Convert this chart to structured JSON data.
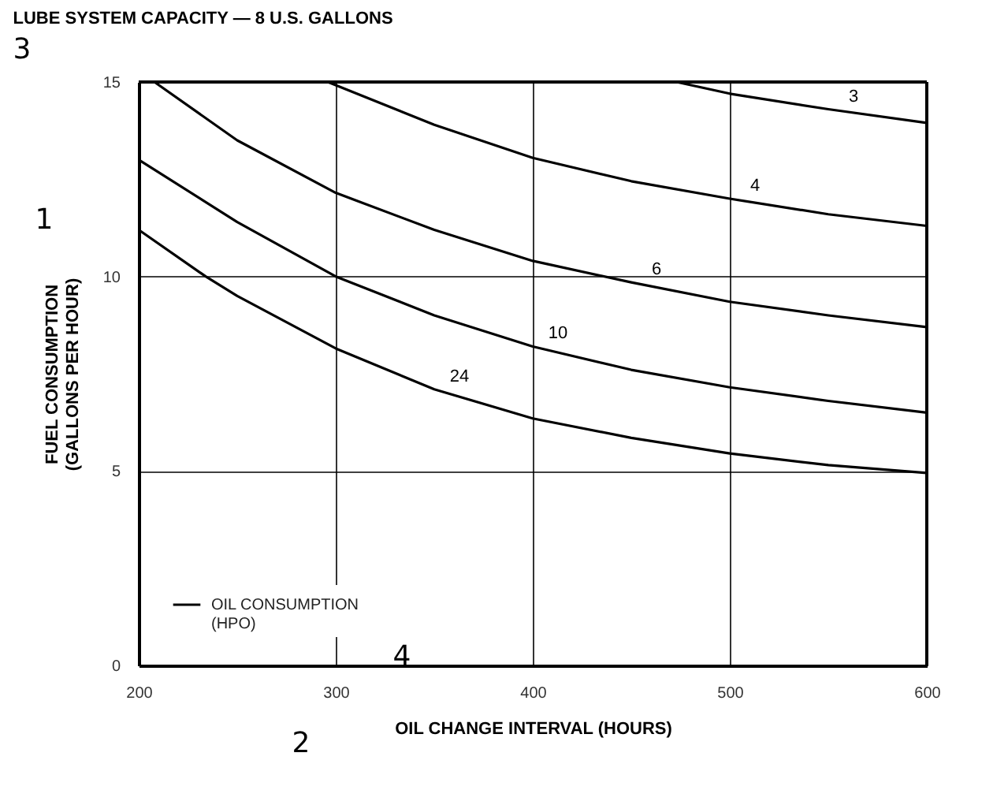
{
  "chart_data": {
    "type": "line",
    "title": "LUBE SYSTEM CAPACITY — 8 U.S. GALLONS",
    "xlabel": "OIL CHANGE INTERVAL (HOURS)",
    "ylabel": "FUEL CONSUMPTION\n(GALLONS PER HOUR)",
    "legend_title": "OIL CONSUMPTION\n(HPO)",
    "xlim": [
      200,
      600
    ],
    "xticks": [
      200,
      300,
      400,
      500,
      600
    ],
    "ylim": [
      0,
      15
    ],
    "yticks": [
      0,
      5,
      10,
      15
    ],
    "grid": true,
    "marker": "none",
    "line_style": "solid",
    "annotations": [
      "1",
      "2",
      "3",
      "4"
    ],
    "series": [
      {
        "name": "3",
        "color": "#000000",
        "x": [
          473,
          500,
          550,
          600
        ],
        "values": [
          15,
          14.7,
          14.3,
          13.95
        ]
      },
      {
        "name": "4",
        "color": "#000000",
        "x": [
          296,
          350,
          400,
          450,
          500,
          550,
          600
        ],
        "values": [
          15,
          13.9,
          13.05,
          12.45,
          12.0,
          11.6,
          11.3
        ]
      },
      {
        "name": "6",
        "color": "#000000",
        "x": [
          208,
          250,
          300,
          350,
          400,
          450,
          500,
          550,
          600
        ],
        "values": [
          15,
          13.5,
          12.15,
          11.2,
          10.4,
          9.85,
          9.35,
          9.0,
          8.7
        ]
      },
      {
        "name": "10",
        "color": "#000000",
        "x": [
          200,
          250,
          300,
          350,
          400,
          450,
          500,
          550,
          600
        ],
        "values": [
          13.0,
          11.4,
          10.0,
          9.0,
          8.2,
          7.6,
          7.15,
          6.8,
          6.5
        ]
      },
      {
        "name": "24",
        "color": "#000000",
        "x": [
          200,
          234,
          250,
          300,
          350,
          400,
          450,
          500,
          550,
          600
        ],
        "values": [
          11.2,
          10.0,
          9.5,
          8.15,
          7.1,
          6.35,
          5.85,
          5.45,
          5.15,
          4.95
        ]
      }
    ]
  }
}
